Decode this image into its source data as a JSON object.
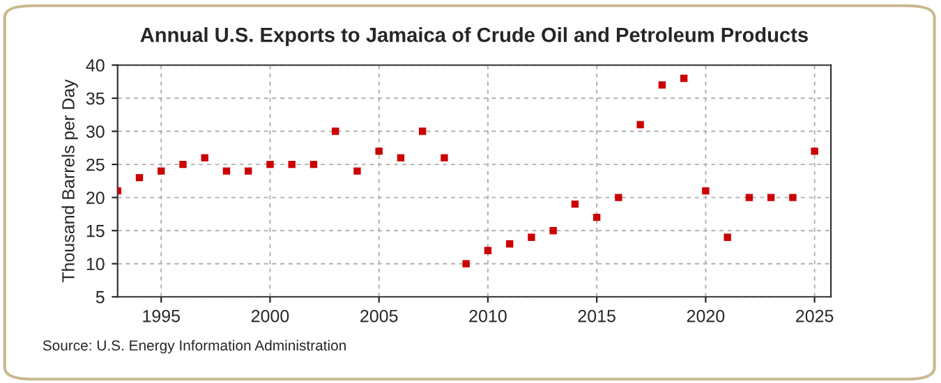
{
  "chart_data": {
    "type": "scatter",
    "title": "Annual U.S. Exports to Jamaica of Crude Oil and Petroleum Products",
    "ylabel": "Thousand Barrels per Day",
    "x": [
      1993,
      1994,
      1995,
      1996,
      1997,
      1998,
      1999,
      2000,
      2001,
      2002,
      2003,
      2004,
      2005,
      2006,
      2007,
      2008,
      2009,
      2010,
      2011,
      2012,
      2013,
      2014,
      2015,
      2016,
      2017,
      2018,
      2019,
      2020,
      2021,
      2022,
      2023,
      2024,
      2025
    ],
    "series": [
      {
        "color": "#cc0000",
        "values": [
          21,
          23,
          24,
          25,
          26,
          24,
          24,
          25,
          25,
          25,
          30,
          24,
          27,
          26,
          30,
          26,
          10,
          12,
          13,
          14,
          15,
          19,
          17,
          20,
          31,
          37,
          38,
          21,
          14,
          20,
          20,
          20,
          27
        ]
      }
    ],
    "xlim": [
      1993,
      2025.75
    ],
    "xticks": [
      1995,
      2000,
      2005,
      2010,
      2015,
      2020,
      2025
    ],
    "ylim": [
      5,
      40
    ],
    "yticks": [
      5,
      10,
      15,
      20,
      25,
      30,
      35,
      40
    ],
    "grid": true,
    "marker": "square",
    "annotations": [
      "Source: U.S. Energy Information Administration"
    ]
  }
}
